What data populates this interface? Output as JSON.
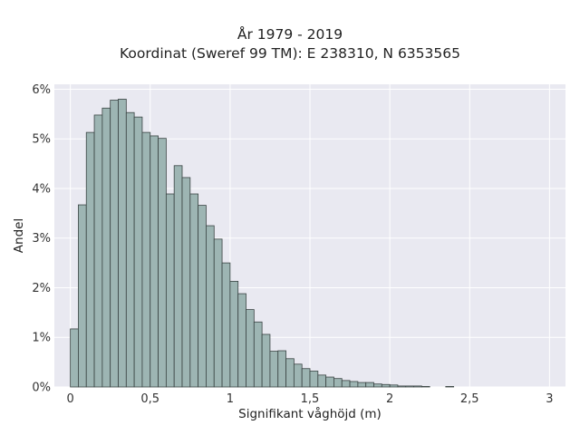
{
  "chart_data": {
    "type": "bar",
    "title": "År 1979 - 2019",
    "subtitle": "Koordinat (Sweref 99 TM): E 238310, N 6353565",
    "xlabel": "Signifikant våghöjd (m)",
    "ylabel": "Andel",
    "xlim": [
      -0.1,
      3.1
    ],
    "ylim": [
      0,
      6.1
    ],
    "bin_width": 0.05,
    "bin_start": 0.0,
    "x_ticks": [
      {
        "value": 0,
        "label": "0"
      },
      {
        "value": 0.5,
        "label": "0,5"
      },
      {
        "value": 1,
        "label": "1"
      },
      {
        "value": 1.5,
        "label": "1,5"
      },
      {
        "value": 2,
        "label": "2"
      },
      {
        "value": 2.5,
        "label": "2,5"
      },
      {
        "value": 3,
        "label": "3"
      }
    ],
    "y_ticks": [
      {
        "value": 0,
        "label": "0%"
      },
      {
        "value": 1,
        "label": "1%"
      },
      {
        "value": 2,
        "label": "2%"
      },
      {
        "value": 3,
        "label": "3%"
      },
      {
        "value": 4,
        "label": "4%"
      },
      {
        "value": 5,
        "label": "5%"
      },
      {
        "value": 6,
        "label": "6%"
      }
    ],
    "values": [
      1.17,
      3.67,
      5.13,
      5.48,
      5.62,
      5.78,
      5.8,
      5.53,
      5.44,
      5.13,
      5.06,
      5.01,
      3.89,
      4.46,
      4.22,
      3.89,
      3.66,
      3.25,
      2.98,
      2.5,
      2.13,
      1.88,
      1.56,
      1.31,
      1.06,
      0.72,
      0.73,
      0.57,
      0.46,
      0.37,
      0.32,
      0.24,
      0.2,
      0.17,
      0.13,
      0.11,
      0.09,
      0.09,
      0.06,
      0.05,
      0.04,
      0.02,
      0.02,
      0.02,
      0.01,
      0.0,
      0.0,
      0.01,
      0.0
    ],
    "grid": true,
    "colors": {
      "background": "#e9e9f1",
      "grid": "#ffffff",
      "bar_fill": "#9db5b3",
      "bar_edge": "#3a4443"
    }
  }
}
